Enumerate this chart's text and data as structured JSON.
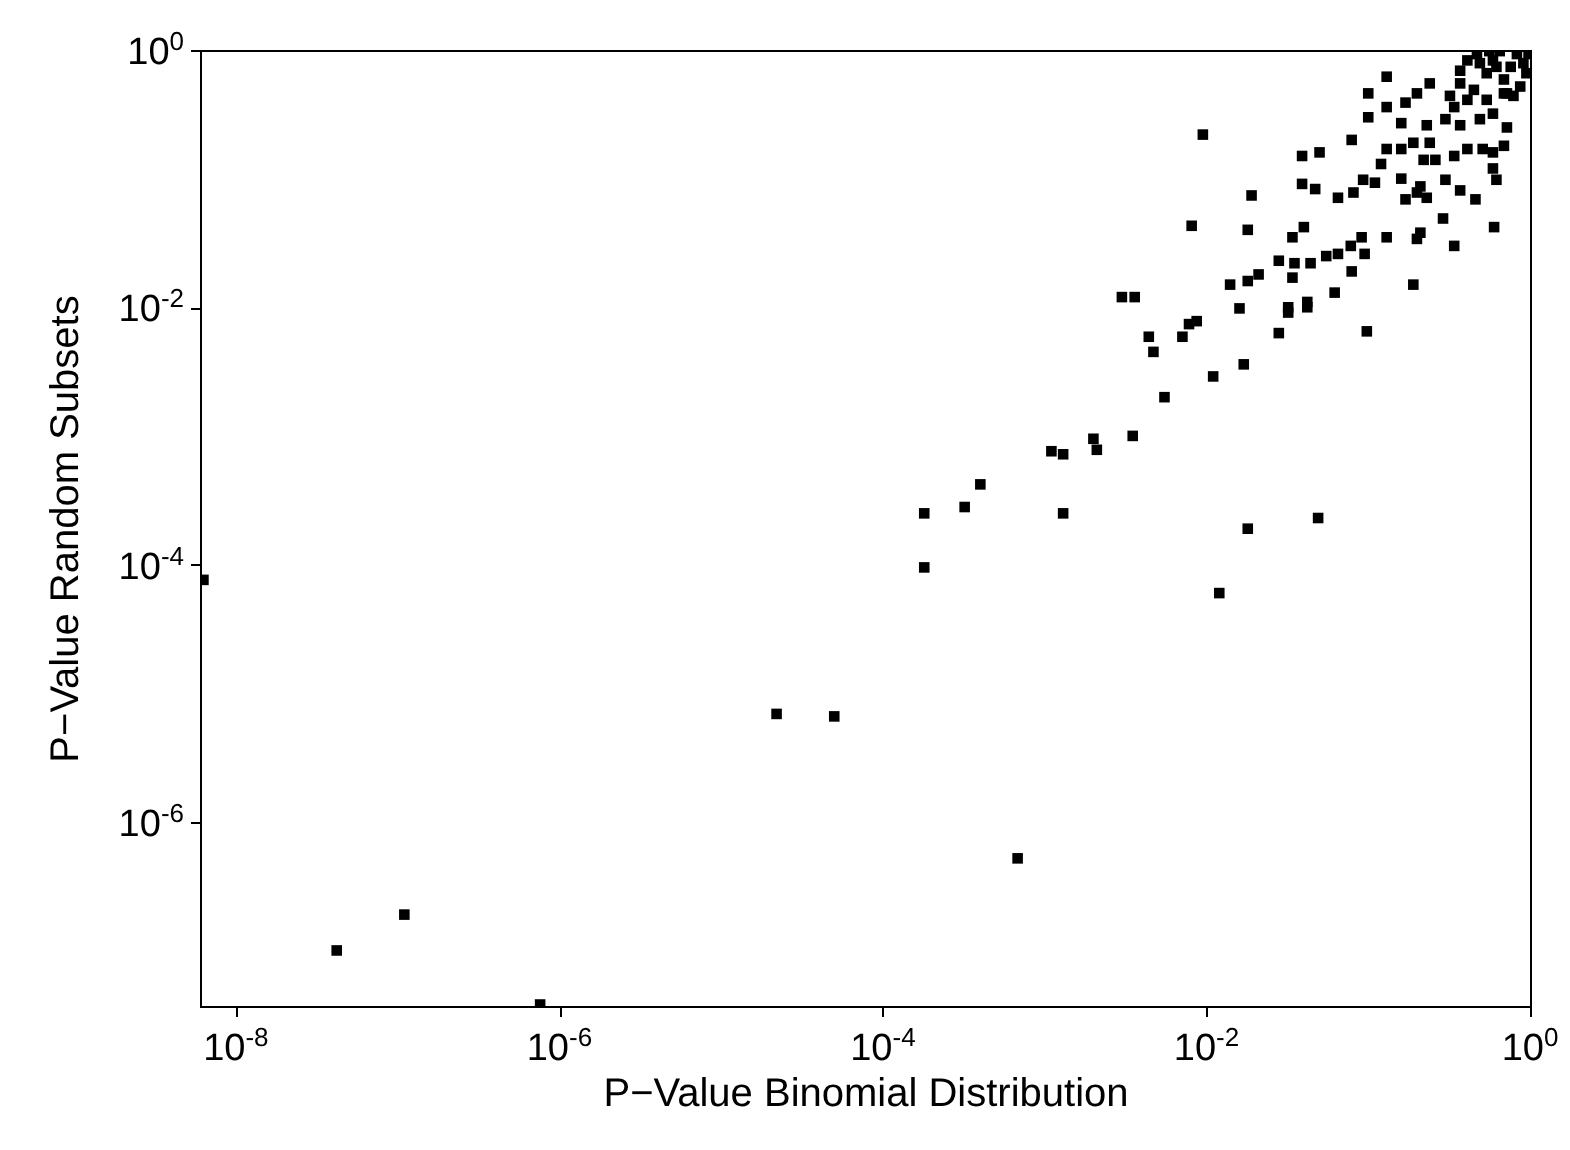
{
  "chart_data": {
    "type": "scatter",
    "xlabel": "P−Value Binomial Distribution",
    "ylabel": "P−Value Random Subsets",
    "log": "xy",
    "grid": false,
    "marker": "square",
    "xlim": [
      6e-09,
      1
    ],
    "ylim": [
      3.7e-08,
      1
    ],
    "xticks": [
      {
        "value": 1e-08,
        "label": "10$^{-8}$"
      },
      {
        "value": 1e-06,
        "label": "10$^{-6}$"
      },
      {
        "value": 0.0001,
        "label": "10$^{-4}$"
      },
      {
        "value": 0.01,
        "label": "10$^{-2}$"
      },
      {
        "value": 1,
        "label": "10$^{0}$"
      }
    ],
    "yticks": [
      {
        "value": 1e-06,
        "label": "10$^{-6}$"
      },
      {
        "value": 0.0001,
        "label": "10$^{-4}$"
      },
      {
        "value": 0.01,
        "label": "10$^{-2}$"
      },
      {
        "value": 1,
        "label": "10$^{0}$"
      }
    ],
    "series": [
      {
        "color": "#000000",
        "x": [
          6.3e-09,
          4.2e-08,
          1.1e-07,
          7.6e-07,
          2.2e-05,
          5e-05,
          0.00018,
          0.00068,
          0.012,
          0.00018,
          0.00032,
          0.0004,
          0.0013,
          0.0011,
          0.0013,
          0.002,
          0.0021,
          0.0035,
          0.0055,
          0.011,
          0.018,
          0.049,
          0.017,
          0.0044,
          0.0047,
          0.0071,
          0.0078,
          0.0087,
          0.003,
          0.0036,
          0.0081,
          0.0095,
          0.014,
          0.016,
          0.018,
          0.021,
          0.018,
          0.019,
          0.028,
          0.028,
          0.034,
          0.035,
          0.032,
          0.032,
          0.042,
          0.042,
          0.044,
          0.034,
          0.04,
          0.039,
          0.047,
          0.039,
          0.05,
          0.055,
          0.065,
          0.062,
          0.079,
          0.078,
          0.095,
          0.091,
          0.13,
          0.098,
          0.065,
          0.081,
          0.093,
          0.11,
          0.12,
          0.079,
          0.1,
          0.1,
          0.13,
          0.13,
          0.19,
          0.2,
          0.21,
          0.29,
          0.34,
          0.6,
          0.16,
          0.17,
          0.2,
          0.23,
          0.21,
          0.3,
          0.37,
          0.46,
          0.62,
          0.59,
          0.13,
          0.16,
          0.19,
          0.24,
          0.22,
          0.26,
          0.34,
          0.41,
          0.51,
          0.59,
          0.69,
          0.16,
          0.23,
          0.3,
          0.37,
          0.49,
          0.59,
          0.72,
          0.17,
          0.2,
          0.24,
          0.32,
          0.41,
          0.34,
          0.45,
          0.54,
          0.69,
          0.37,
          0.41,
          0.47,
          0.54,
          0.59,
          0.69,
          0.76,
          0.83,
          0.87,
          0.95,
          0.98,
          0.72,
          0.79,
          0.91,
          0.62,
          0.49,
          0.56,
          0.65,
          0.37
        ],
        "values": [
          7.6e-05,
          1e-07,
          1.9e-07,
          3.8e-08,
          6.9e-06,
          6.6e-06,
          9.5e-05,
          5.2e-07,
          6e-05,
          0.00025,
          0.00028,
          0.00042,
          0.00025,
          0.00076,
          0.00072,
          0.00095,
          0.00078,
          0.001,
          0.002,
          0.0029,
          0.00019,
          0.00023,
          0.0036,
          0.0059,
          0.0045,
          0.0059,
          0.0074,
          0.0078,
          0.012,
          0.012,
          0.043,
          0.22,
          0.015,
          0.0098,
          0.016,
          0.018,
          0.04,
          0.074,
          0.0063,
          0.023,
          0.017,
          0.022,
          0.0091,
          0.01,
          0.01,
          0.011,
          0.022,
          0.035,
          0.042,
          0.091,
          0.083,
          0.15,
          0.16,
          0.025,
          0.026,
          0.013,
          0.019,
          0.03,
          0.026,
          0.035,
          0.035,
          0.0065,
          0.071,
          0.078,
          0.098,
          0.093,
          0.13,
          0.2,
          0.3,
          0.46,
          0.36,
          0.62,
          0.015,
          0.034,
          0.038,
          0.049,
          0.03,
          0.042,
          0.1,
          0.069,
          0.078,
          0.071,
          0.087,
          0.098,
          0.081,
          0.069,
          0.098,
          0.12,
          0.17,
          0.17,
          0.19,
          0.19,
          0.14,
          0.14,
          0.15,
          0.17,
          0.17,
          0.16,
          0.18,
          0.27,
          0.26,
          0.29,
          0.26,
          0.29,
          0.32,
          0.25,
          0.39,
          0.46,
          0.55,
          0.44,
          0.41,
          0.36,
          0.49,
          0.41,
          0.46,
          0.69,
          0.83,
          0.93,
          0.66,
          0.83,
          0.59,
          0.74,
          0.93,
          0.52,
          0.66,
          0.93,
          0.46,
          0.44,
          0.79,
          0.74,
          0.79,
          0.98,
          0.98,
          0.55
        ]
      }
    ]
  }
}
